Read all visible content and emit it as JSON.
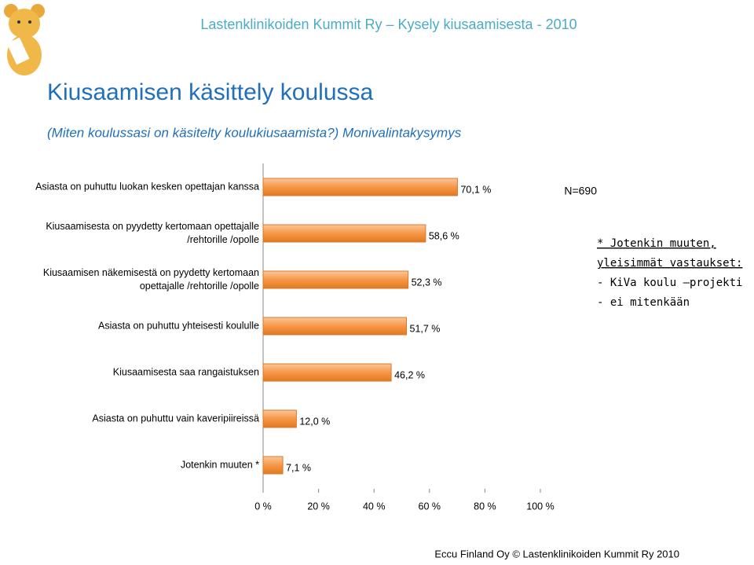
{
  "header": "Lastenklinikoiden Kummit Ry – Kysely kiusaamisesta - 2010",
  "chart_data": {
    "type": "bar",
    "orientation": "horizontal",
    "title": "Kiusaamisen käsittely koulussa",
    "subtitle": "(Miten koulussasi on käsitelty koulukiusaamista?) Monivalintakysymys",
    "sample_size": "N=690",
    "categories": [
      "Asiasta on puhuttu luokan kesken opettajan kanssa",
      "Kiusaamisesta on pyydetty kertomaan opettajalle /rehtorille /opolle",
      "Kiusaamisen näkemisestä on pyydetty kertomaan opettajalle /rehtorille /opolle",
      "Asiasta on puhuttu yhteisesti koululle",
      "Kiusaamisesta saa rangaistuksen",
      "Asiasta on puhuttu vain kaveripiireissä",
      "Jotenkin muuten *"
    ],
    "values": [
      70.1,
      58.6,
      52.3,
      51.7,
      46.2,
      12.0,
      7.1
    ],
    "value_labels": [
      "70,1 %",
      "58,6 %",
      "52,3 %",
      "51,7 %",
      "46,2 %",
      "12,0 %",
      "7,1 %"
    ],
    "color": "#f79646",
    "xlim": [
      0,
      100
    ],
    "xticks": [
      {
        "value": 0,
        "label": "0 %"
      },
      {
        "value": 20,
        "label": "20 %"
      },
      {
        "value": 40,
        "label": "40 %"
      },
      {
        "value": 60,
        "label": "60 %"
      },
      {
        "value": 80,
        "label": "80 %"
      },
      {
        "value": 100,
        "label": "100 %"
      }
    ],
    "notes": [
      "* Jotenkin muuten,",
      "yleisimmät vastaukset:",
      "- KiVa koulu –projekti",
      "- ei mitenkään"
    ]
  },
  "footer": "Eccu Finland Oy © Lastenklinikoiden Kummit Ry 2010"
}
